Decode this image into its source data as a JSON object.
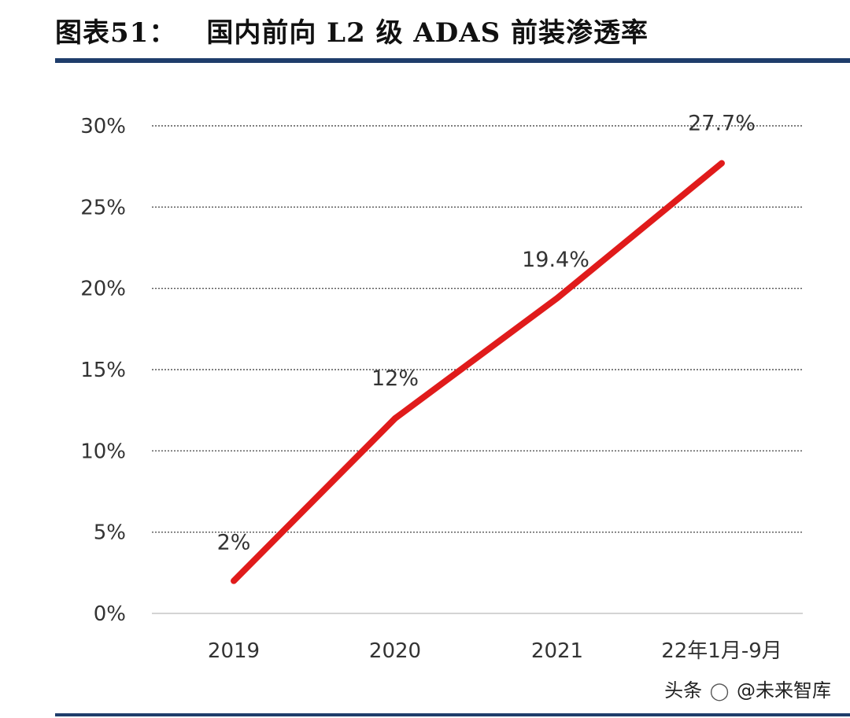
{
  "header": {
    "figure_label": "图表51：",
    "title": "国内前向 L2 级 ADAS 前装渗透率"
  },
  "chart_data": {
    "type": "line",
    "title": "国内前向 L2 级 ADAS 前装渗透率",
    "categories": [
      "2019",
      "2020",
      "2021",
      "22年1月-9月"
    ],
    "series": [
      {
        "name": "前装渗透率",
        "values": [
          2,
          12,
          19.4,
          27.7
        ],
        "labels": [
          "2%",
          "12%",
          "19.4%",
          "27.7%"
        ],
        "color": "#e01b1b"
      }
    ],
    "ylim": [
      0,
      30
    ],
    "yticks": [
      0,
      5,
      10,
      15,
      20,
      25,
      30
    ],
    "ytick_labels": [
      "0%",
      "5%",
      "10%",
      "15%",
      "20%",
      "25%",
      "30%"
    ],
    "xlabel": "",
    "ylabel": "",
    "grid": true,
    "legend": "none"
  },
  "colors": {
    "accent_rule": "#1f3d6b",
    "line": "#e01b1b",
    "grid": "#555555",
    "text": "#333333"
  },
  "watermark": {
    "prefix": "头条",
    "icon": "wechat-icon",
    "handle": "@未来智库"
  }
}
